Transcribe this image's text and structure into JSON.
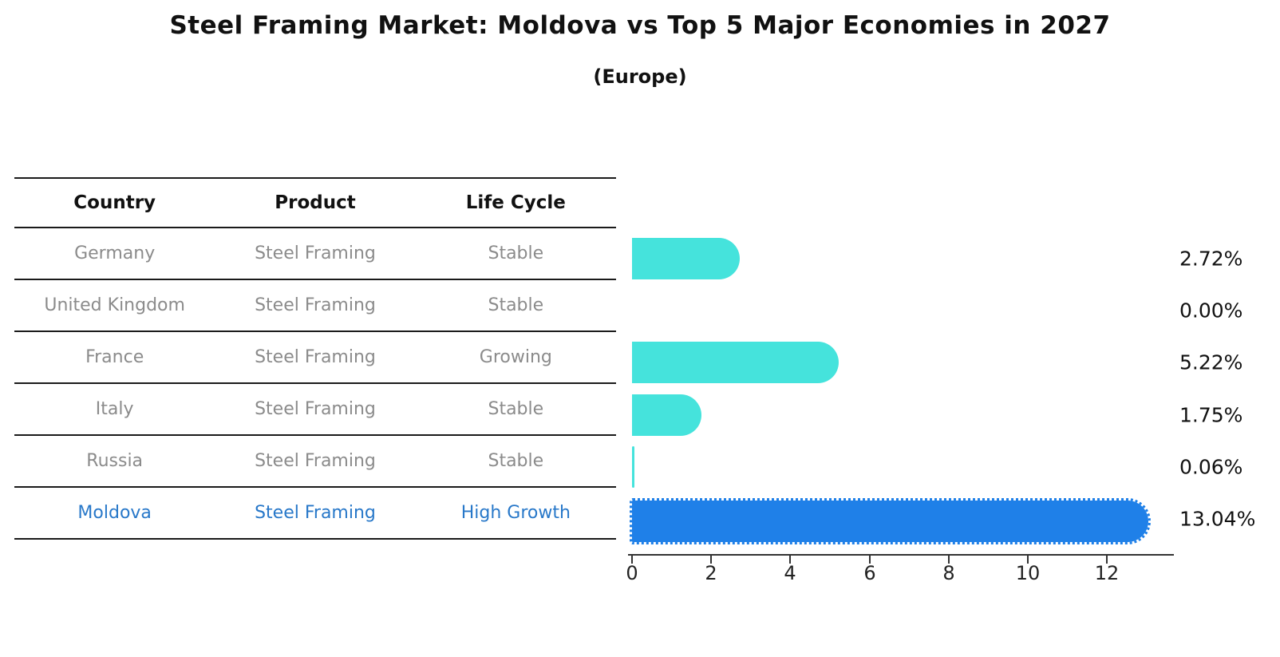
{
  "title": "Steel Framing Market: Moldova vs Top 5 Major Economies in 2027",
  "subtitle": "(Europe)",
  "table": {
    "headers": {
      "country": "Country",
      "product": "Product",
      "life_cycle": "Life Cycle"
    },
    "rows": [
      {
        "country": "Germany",
        "product": "Steel Framing",
        "life_cycle": "Stable"
      },
      {
        "country": "United Kingdom",
        "product": "Steel Framing",
        "life_cycle": "Stable"
      },
      {
        "country": "France",
        "product": "Steel Framing",
        "life_cycle": "Growing"
      },
      {
        "country": "Italy",
        "product": "Steel Framing",
        "life_cycle": "Stable"
      },
      {
        "country": "Russia",
        "product": "Steel Framing",
        "life_cycle": "Stable"
      },
      {
        "country": "Moldova",
        "product": "Steel Framing",
        "life_cycle": "High Growth"
      }
    ],
    "highlight_row": 5
  },
  "chart_data": {
    "type": "bar",
    "orientation": "horizontal",
    "title": "Steel Framing Market: Moldova vs Top 5 Major Economies in 2027",
    "subtitle": "(Europe)",
    "categories": [
      "Germany",
      "United Kingdom",
      "France",
      "Italy",
      "Russia",
      "Moldova"
    ],
    "values": [
      2.72,
      0.0,
      5.22,
      1.75,
      0.06,
      13.04
    ],
    "value_labels": [
      "2.72%",
      "0.00%",
      "5.22%",
      "1.75%",
      "0.06%",
      "13.04%"
    ],
    "xticks": [
      0,
      2,
      4,
      6,
      8,
      10,
      12
    ],
    "xlim": [
      0,
      13.7
    ],
    "grid": false,
    "legend": false,
    "bar_color": "#45e3dc",
    "highlight_color": "#1f80e8",
    "highlight_index": 5
  },
  "colors": {
    "background": "#ffffff",
    "table_text": "#8b8b8b",
    "header_text": "#111111",
    "highlight_text": "#2878c9",
    "separator_line": "#1a1a1a",
    "axis_line": "#333333"
  }
}
